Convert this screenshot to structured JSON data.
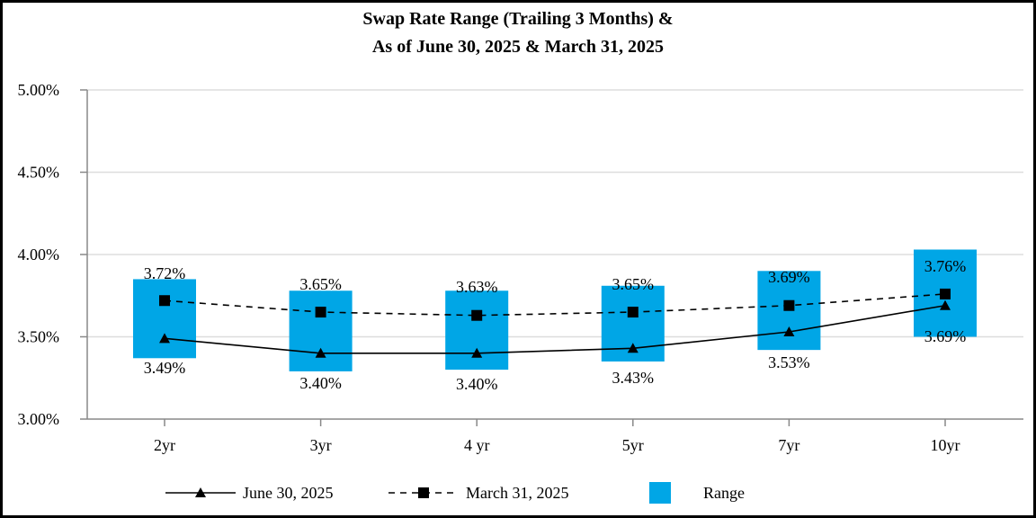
{
  "chart_data": {
    "type": "line",
    "title_lines": [
      "Swap Rate Range (Trailing 3 Months) &",
      "As of June 30, 2025 & March 31, 2025"
    ],
    "categories": [
      "2yr",
      "3yr",
      "4 yr",
      "5yr",
      "7yr",
      "10yr"
    ],
    "ylim": [
      3.0,
      5.0
    ],
    "yticks": [
      3.0,
      3.5,
      4.0,
      4.5,
      5.0
    ],
    "ytick_labels": [
      "3.00%",
      "3.50%",
      "4.00%",
      "4.50%",
      "5.00%"
    ],
    "grid": true,
    "series": [
      {
        "name": "June 30, 2025",
        "style": "solid",
        "marker": "triangle",
        "values": [
          3.49,
          3.4,
          3.4,
          3.43,
          3.53,
          3.69
        ],
        "labels": [
          "3.49%",
          "3.40%",
          "3.40%",
          "3.43%",
          "3.53%",
          "3.69%"
        ]
      },
      {
        "name": "March 31, 2025",
        "style": "dashed",
        "marker": "square",
        "values": [
          3.72,
          3.65,
          3.63,
          3.65,
          3.69,
          3.76
        ],
        "labels": [
          "3.72%",
          "3.65%",
          "3.63%",
          "3.65%",
          "3.69%",
          "3.76%"
        ]
      }
    ],
    "range": {
      "name": "Range",
      "low": [
        3.37,
        3.29,
        3.3,
        3.35,
        3.42,
        3.5
      ],
      "high": [
        3.85,
        3.78,
        3.78,
        3.81,
        3.9,
        4.03
      ]
    },
    "legend_position": "bottom",
    "colors": {
      "range": "#00a6e6",
      "line": "#000000",
      "grid": "#dddddd"
    }
  }
}
